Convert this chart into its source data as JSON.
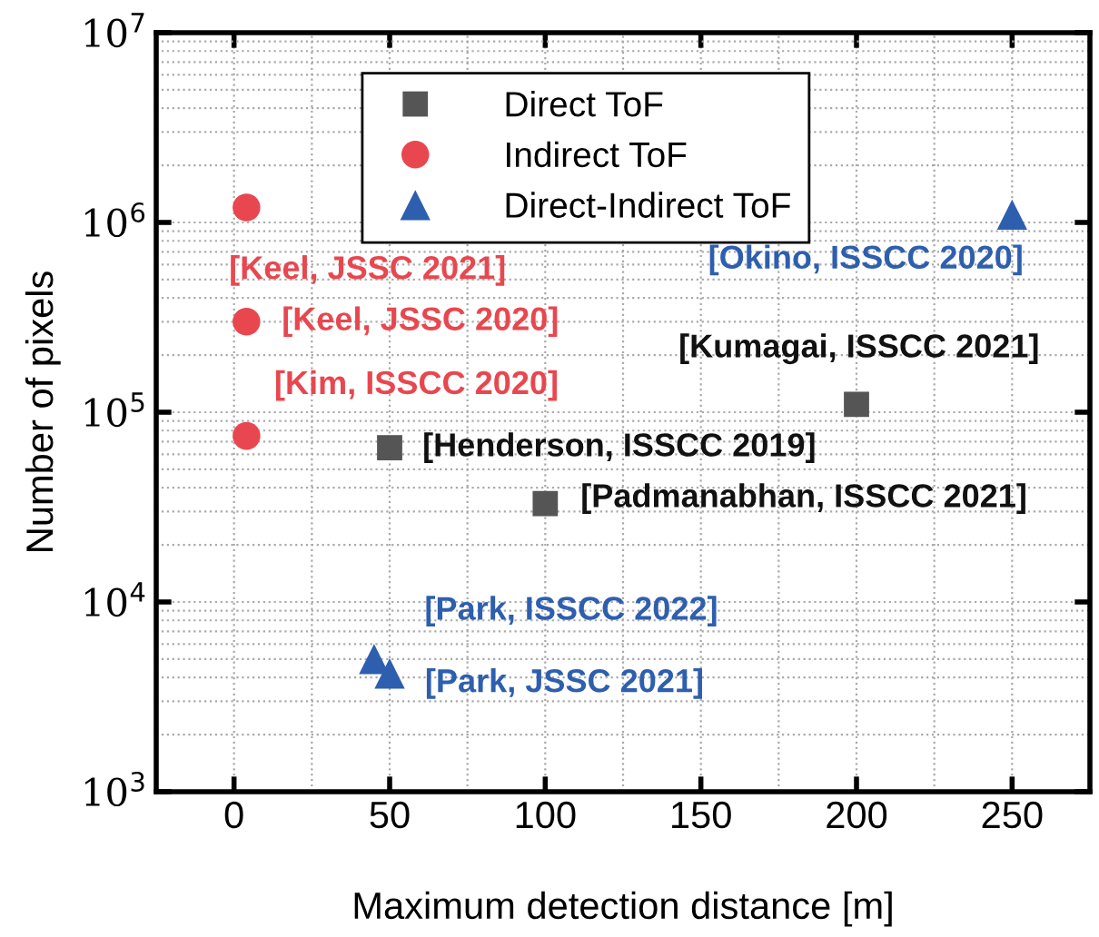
{
  "chart_data": {
    "type": "scatter",
    "xlabel": "Maximum detection distance [m]",
    "ylabel": "Number of pixels",
    "log": "y",
    "grid": true,
    "legend": "top",
    "xlim": [
      -25,
      275
    ],
    "xticks": [
      0,
      50,
      100,
      150,
      200,
      250
    ],
    "ylim": [
      1000,
      10000000
    ],
    "yticks": [
      {
        "value": 1000,
        "label": "10$^{3}$"
      },
      {
        "value": 10000,
        "label": "10$^{4}$"
      },
      {
        "value": 100000,
        "label": "10$^{5}$"
      },
      {
        "value": 1000000,
        "label": "10$^{6}$"
      },
      {
        "value": 10000000,
        "label": "10$^{7}$"
      }
    ],
    "series": [
      {
        "name": "Direct ToF",
        "color": "#555555",
        "marker": "square",
        "x": [
          50,
          100,
          200
        ],
        "values": [
          65000,
          33000,
          110000
        ]
      },
      {
        "name": "Indirect ToF",
        "color": "#e8474f",
        "marker": "circle",
        "x": [
          4,
          4,
          4
        ],
        "values": [
          1200000,
          300000,
          75000
        ]
      },
      {
        "name": "Direct-Indirect ToF",
        "color": "#2e5fae",
        "marker": "triangle",
        "x": [
          45,
          50,
          250
        ],
        "values": [
          5000,
          4200,
          1100000
        ]
      }
    ],
    "annotations": [
      {
        "text": "[Keel, JSSC 2021]",
        "x": 4,
        "y": 1200000
      },
      {
        "text": "[Keel, JSSC 2020]",
        "x": 4,
        "y": 300000
      },
      {
        "text": "[Kim, ISSCC 2020]",
        "x": 4,
        "y": 75000
      },
      {
        "text": "[Henderson, ISSCC 2019]",
        "x": 50,
        "y": 65000
      },
      {
        "text": "[Padmanabhan, ISSCC 2021]",
        "x": 100,
        "y": 33000
      },
      {
        "text": "[Kumagai, ISSCC 2021]",
        "x": 200,
        "y": 110000
      },
      {
        "text": "[Okino, ISSCC 2020]",
        "x": 250,
        "y": 1100000
      },
      {
        "text": "[Park, ISSCC 2022]",
        "x": 45,
        "y": 5000
      },
      {
        "text": "[Park, JSSC 2021]",
        "x": 50,
        "y": 4200
      }
    ]
  }
}
